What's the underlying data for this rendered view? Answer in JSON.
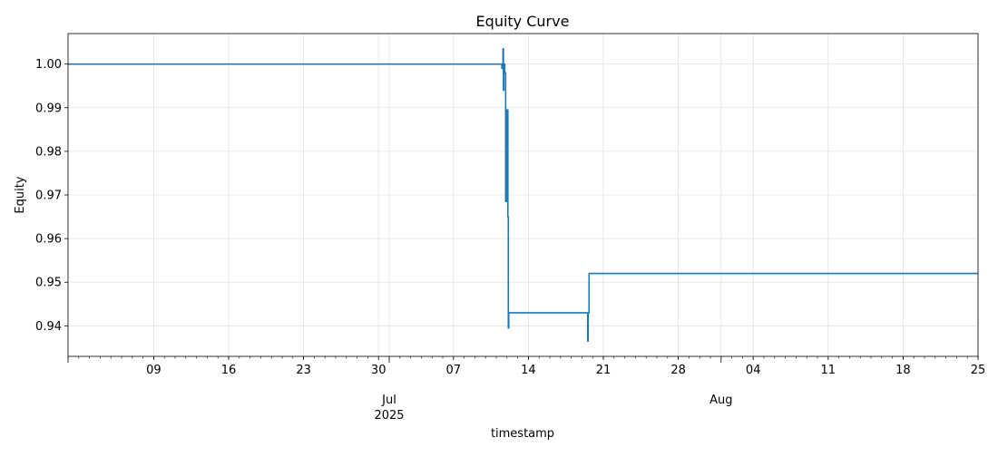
{
  "chart_data": {
    "type": "line",
    "title": "Equity Curve",
    "xlabel": "timestamp",
    "ylabel": "Equity",
    "grid": true,
    "xlim": [
      "2025-06-01",
      "2025-08-25"
    ],
    "ylim": [
      0.933,
      1.007
    ],
    "y_ticks": [
      0.94,
      0.95,
      0.96,
      0.97,
      0.98,
      0.99,
      1.0
    ],
    "y_tick_labels": [
      "0.94",
      "0.95",
      "0.96",
      "0.97",
      "0.98",
      "0.99",
      "1.00"
    ],
    "x_minor_ticks": [
      {
        "date": "2025-06-09",
        "label": "09"
      },
      {
        "date": "2025-06-16",
        "label": "16"
      },
      {
        "date": "2025-06-23",
        "label": "23"
      },
      {
        "date": "2025-06-30",
        "label": "30"
      },
      {
        "date": "2025-07-07",
        "label": "07"
      },
      {
        "date": "2025-07-14",
        "label": "14"
      },
      {
        "date": "2025-07-21",
        "label": "21"
      },
      {
        "date": "2025-07-28",
        "label": "28"
      },
      {
        "date": "2025-08-04",
        "label": "04"
      },
      {
        "date": "2025-08-11",
        "label": "11"
      },
      {
        "date": "2025-08-18",
        "label": "18"
      },
      {
        "date": "2025-08-25",
        "label": "25"
      }
    ],
    "x_major_ticks": [
      {
        "date": "2025-07-01",
        "label": "Jul",
        "sublabel": "2025"
      },
      {
        "date": "2025-08-01",
        "label": "Aug",
        "sublabel": ""
      }
    ],
    "series": [
      {
        "color": "#1f77b4",
        "points": [
          [
            "2025-06-01",
            1.0
          ],
          [
            "2025-07-11 12:00",
            1.0
          ],
          [
            "2025-07-11 12:30",
            0.999
          ],
          [
            "2025-07-11 13:00",
            1.0
          ],
          [
            "2025-07-11 14:00",
            1.0
          ],
          [
            "2025-07-11 15:00",
            1.0035
          ],
          [
            "2025-07-11 16:00",
            0.994
          ],
          [
            "2025-07-11 17:00",
            1.0
          ],
          [
            "2025-07-11 19:00",
            0.998
          ],
          [
            "2025-07-11 21:00",
            0.9685
          ],
          [
            "2025-07-11 23:00",
            0.9895
          ],
          [
            "2025-07-12 00:00",
            0.975
          ],
          [
            "2025-07-12 01:00",
            0.9895
          ],
          [
            "2025-07-12 02:00",
            0.965
          ],
          [
            "2025-07-12 03:00",
            0.9395
          ],
          [
            "2025-07-12 04:00",
            0.943
          ],
          [
            "2025-07-19 12:00",
            0.943
          ],
          [
            "2025-07-19 13:00",
            0.9365
          ],
          [
            "2025-07-19 14:00",
            0.943
          ],
          [
            "2025-07-19 16:00",
            0.952
          ],
          [
            "2025-08-25",
            0.952
          ]
        ]
      }
    ]
  }
}
